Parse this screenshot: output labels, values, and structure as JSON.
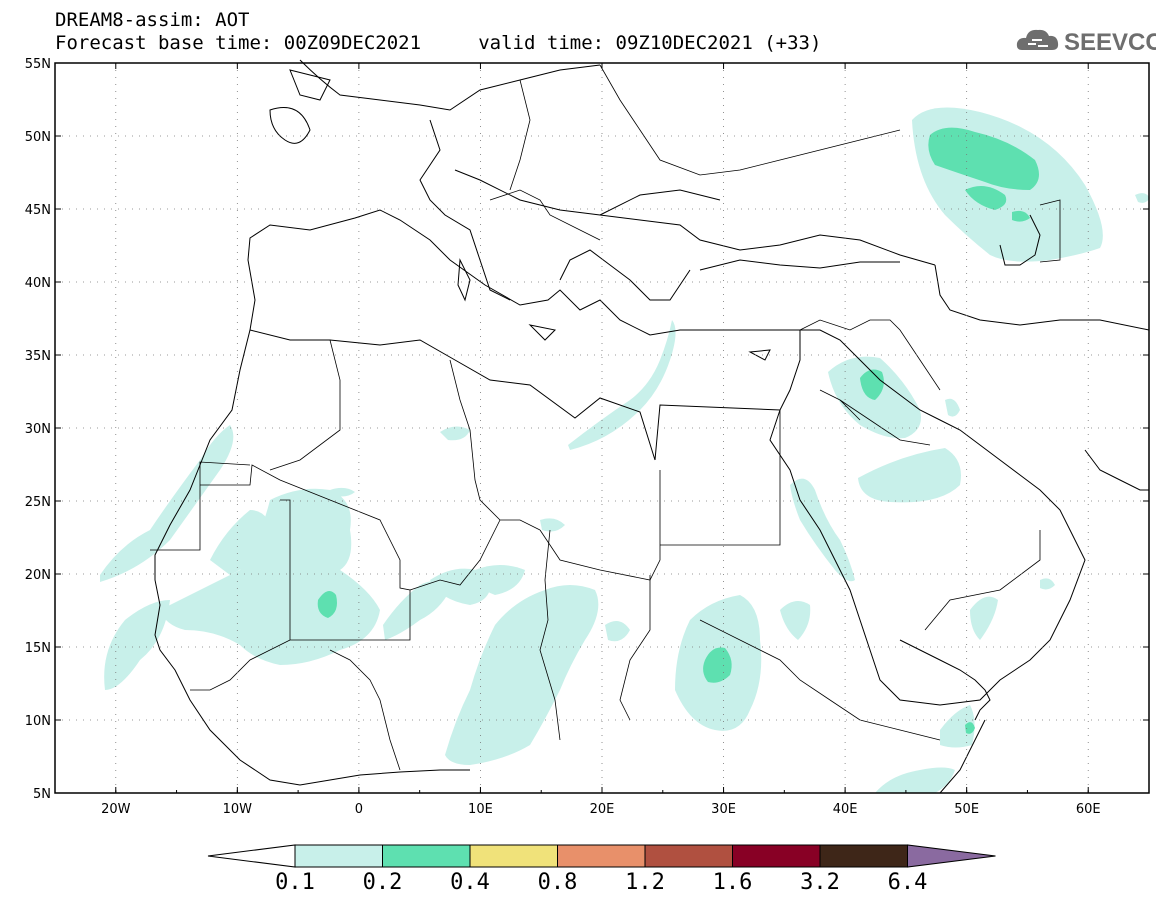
{
  "header": {
    "line1": "DREAM8-assim: AOT",
    "line2": "Forecast base time: 00Z09DEC2021     valid time: 09Z10DEC2021 (+33)"
  },
  "logo": {
    "text": "SEEVCCC",
    "icon": "cloud-icon"
  },
  "map": {
    "lon_range": [
      -25,
      65
    ],
    "lat_range": [
      5,
      55
    ],
    "lat_ticks": [
      "5N",
      "10N",
      "15N",
      "20N",
      "25N",
      "30N",
      "35N",
      "40N",
      "45N",
      "50N",
      "55N"
    ],
    "lon_ticks": [
      "20W",
      "10W",
      "0",
      "10E",
      "20E",
      "30E",
      "40E",
      "50E",
      "60E"
    ],
    "grid": "dotted"
  },
  "colorbar": {
    "labels": [
      "0.1",
      "0.2",
      "0.4",
      "0.8",
      "1.2",
      "1.6",
      "3.2",
      "6.4"
    ],
    "colors": [
      "#c8f0ea",
      "#5ee0b0",
      "#f0e27a",
      "#e8906a",
      "#b05040",
      "#880025",
      "#3e2618",
      "#8a6aa0"
    ]
  }
}
